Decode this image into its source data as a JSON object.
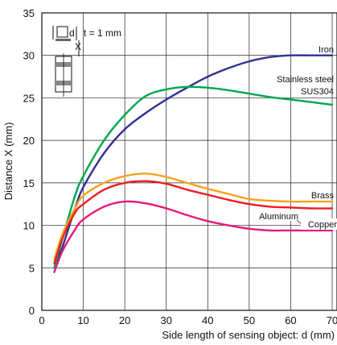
{
  "chart_data": {
    "type": "line",
    "xlabel": "Side length of sensing object: d (mm)",
    "ylabel": "Distance X (mm)",
    "xlim": [
      0,
      70
    ],
    "ylim": [
      0,
      35
    ],
    "x_ticks": [
      0,
      10,
      20,
      30,
      40,
      50,
      60,
      70
    ],
    "y_ticks": [
      0,
      5,
      10,
      15,
      20,
      25,
      30,
      35
    ],
    "grid": true,
    "annotation": "t = 1 mm",
    "inset_labels": [
      "d",
      "X"
    ],
    "series": [
      {
        "name": "Iron",
        "color": "#2e3192",
        "points": [
          [
            3,
            5
          ],
          [
            5,
            7.5
          ],
          [
            8,
            12
          ],
          [
            10,
            14.5
          ],
          [
            15,
            18.5
          ],
          [
            20,
            21.3
          ],
          [
            25,
            23.2
          ],
          [
            30,
            24.8
          ],
          [
            35,
            26.2
          ],
          [
            40,
            27.5
          ],
          [
            45,
            28.5
          ],
          [
            50,
            29.3
          ],
          [
            55,
            29.8
          ],
          [
            60,
            30
          ],
          [
            65,
            30
          ],
          [
            70,
            30
          ]
        ]
      },
      {
        "name": "Stainless steel SUS304",
        "color": "#00a650",
        "points": [
          [
            3,
            5
          ],
          [
            5,
            8.5
          ],
          [
            8,
            13.5
          ],
          [
            10,
            15.8
          ],
          [
            15,
            20
          ],
          [
            20,
            23
          ],
          [
            25,
            25.2
          ],
          [
            30,
            26
          ],
          [
            35,
            26.3
          ],
          [
            40,
            26.2
          ],
          [
            45,
            25.9
          ],
          [
            50,
            25.5
          ],
          [
            55,
            25.1
          ],
          [
            60,
            24.8
          ],
          [
            65,
            24.5
          ],
          [
            70,
            24.2
          ]
        ]
      },
      {
        "name": "Brass",
        "color": "#f7a21b",
        "points": [
          [
            3,
            6
          ],
          [
            5,
            9
          ],
          [
            8,
            12
          ],
          [
            10,
            13.5
          ],
          [
            15,
            15
          ],
          [
            20,
            15.8
          ],
          [
            25,
            16.1
          ],
          [
            30,
            15.7
          ],
          [
            35,
            15
          ],
          [
            40,
            14.3
          ],
          [
            45,
            13.7
          ],
          [
            50,
            13.1
          ],
          [
            55,
            12.9
          ],
          [
            60,
            12.8
          ],
          [
            65,
            12.8
          ],
          [
            70,
            12.8
          ]
        ]
      },
      {
        "name": "Aluminum",
        "color": "#ed1c24",
        "points": [
          [
            3,
            5.5
          ],
          [
            5,
            8.5
          ],
          [
            8,
            11.5
          ],
          [
            10,
            12.5
          ],
          [
            15,
            14.2
          ],
          [
            20,
            15
          ],
          [
            25,
            15.2
          ],
          [
            30,
            14.9
          ],
          [
            35,
            14.2
          ],
          [
            40,
            13.6
          ],
          [
            45,
            13
          ],
          [
            50,
            12.5
          ],
          [
            55,
            12.2
          ],
          [
            60,
            12.1
          ],
          [
            65,
            12
          ],
          [
            70,
            12
          ]
        ]
      },
      {
        "name": "Copper",
        "color": "#e5197a",
        "points": [
          [
            3,
            4.5
          ],
          [
            5,
            7
          ],
          [
            8,
            9.5
          ],
          [
            10,
            10.7
          ],
          [
            15,
            12.2
          ],
          [
            20,
            12.8
          ],
          [
            25,
            12.6
          ],
          [
            30,
            12
          ],
          [
            35,
            11.2
          ],
          [
            40,
            10.5
          ],
          [
            45,
            10
          ],
          [
            50,
            9.6
          ],
          [
            55,
            9.4
          ],
          [
            60,
            9.4
          ],
          [
            65,
            9.4
          ],
          [
            70,
            9.4
          ]
        ]
      }
    ]
  }
}
